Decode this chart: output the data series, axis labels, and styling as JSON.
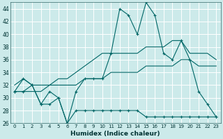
{
  "xlabel": "Humidex (Indice chaleur)",
  "background_color": "#cceaea",
  "grid_color": "#ffffff",
  "line_color": "#006666",
  "xlim": [
    -0.5,
    23.5
  ],
  "ylim": [
    26,
    45
  ],
  "xticks": [
    0,
    1,
    2,
    3,
    4,
    5,
    6,
    7,
    8,
    9,
    10,
    11,
    12,
    13,
    14,
    15,
    16,
    17,
    18,
    19,
    20,
    21,
    22,
    23
  ],
  "yticks": [
    26,
    28,
    30,
    32,
    34,
    36,
    38,
    40,
    42,
    44
  ],
  "series1_x": [
    0,
    1,
    2,
    3,
    4,
    5,
    6,
    7,
    8,
    9,
    10,
    11,
    12,
    13,
    14,
    15,
    16,
    17,
    18,
    19,
    20,
    21,
    22,
    23
  ],
  "series1_y": [
    31,
    33,
    32,
    29,
    31,
    30,
    26,
    31,
    33,
    33,
    33,
    37,
    44,
    43,
    40,
    45,
    43,
    37,
    36,
    39,
    36,
    31,
    29,
    27
  ],
  "series2_x": [
    0,
    1,
    2,
    3,
    4,
    5,
    6,
    7,
    8,
    9,
    10,
    11,
    12,
    13,
    14,
    15,
    16,
    17,
    18,
    19,
    20,
    21,
    22,
    23
  ],
  "series2_y": [
    32,
    33,
    32,
    32,
    32,
    33,
    33,
    34,
    35,
    36,
    37,
    37,
    37,
    37,
    37,
    38,
    38,
    38,
    39,
    39,
    37,
    37,
    37,
    36
  ],
  "series3_x": [
    0,
    1,
    2,
    3,
    4,
    5,
    6,
    7,
    8,
    9,
    10,
    11,
    12,
    13,
    14,
    15,
    16,
    17,
    18,
    19,
    20,
    21,
    22,
    23
  ],
  "series3_y": [
    31,
    31,
    31,
    31,
    32,
    32,
    32,
    32,
    33,
    33,
    33,
    34,
    34,
    34,
    34,
    35,
    35,
    35,
    35,
    36,
    36,
    35,
    35,
    35
  ],
  "series4_x": [
    0,
    1,
    2,
    3,
    4,
    5,
    6,
    7,
    8,
    9,
    10,
    11,
    12,
    13,
    14,
    15,
    16,
    17,
    18,
    19,
    20,
    21,
    22,
    23
  ],
  "series4_y": [
    31,
    31,
    32,
    29,
    29,
    30,
    26,
    28,
    28,
    28,
    28,
    28,
    28,
    28,
    28,
    27,
    27,
    27,
    27,
    27,
    27,
    27,
    27,
    27
  ]
}
